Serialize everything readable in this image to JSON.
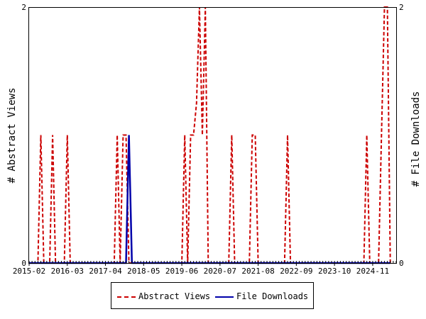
{
  "chart_data": {
    "type": "line",
    "xlabel": "",
    "ylabel_left": "# Abstract Views",
    "ylabel_right": "# File Downloads",
    "ylim_left": [
      0,
      2
    ],
    "ylim_right": [
      0,
      2
    ],
    "y_ticks_left": [
      "0",
      "2"
    ],
    "y_ticks_right": [
      "0",
      "2"
    ],
    "x_range": [
      "2015-02",
      "2025-07"
    ],
    "x_tick_labels": [
      "2015-02",
      "2016-03",
      "2017-04",
      "2018-05",
      "2019-06",
      "2020-07",
      "2021-08",
      "2022-09",
      "2023-10",
      "2024-11"
    ],
    "grid": false,
    "legend_placement": "bottom",
    "series": [
      {
        "name": "Abstract Views",
        "color": "#cc0000",
        "style": "dashed",
        "points": [
          [
            "2015-02",
            0
          ],
          [
            "2015-05",
            0
          ],
          [
            "2015-06",
            1
          ],
          [
            "2015-07",
            0
          ],
          [
            "2015-09",
            0
          ],
          [
            "2015-10",
            1
          ],
          [
            "2015-11",
            0
          ],
          [
            "2016-02",
            0
          ],
          [
            "2016-03",
            1
          ],
          [
            "2016-04",
            0
          ],
          [
            "2017-07",
            0
          ],
          [
            "2017-08",
            1
          ],
          [
            "2017-09",
            0
          ],
          [
            "2017-10",
            1
          ],
          [
            "2017-11",
            1
          ],
          [
            "2017-12",
            0
          ],
          [
            "2019-06",
            0
          ],
          [
            "2019-07",
            1
          ],
          [
            "2019-08",
            0
          ],
          [
            "2019-09",
            1
          ],
          [
            "2019-10",
            1
          ],
          [
            "2019-11",
            1.25
          ],
          [
            "2019-12",
            2
          ],
          [
            "2020-01",
            1
          ],
          [
            "2020-02",
            2
          ],
          [
            "2020-03",
            0
          ],
          [
            "2020-10",
            0
          ],
          [
            "2020-11",
            1
          ],
          [
            "2020-12",
            0
          ],
          [
            "2021-05",
            0
          ],
          [
            "2021-06",
            1
          ],
          [
            "2021-07",
            1
          ],
          [
            "2021-08",
            0
          ],
          [
            "2022-05",
            0
          ],
          [
            "2022-06",
            1
          ],
          [
            "2022-07",
            0
          ],
          [
            "2024-08",
            0
          ],
          [
            "2024-09",
            1
          ],
          [
            "2024-10",
            0
          ],
          [
            "2025-01",
            0
          ],
          [
            "2025-02",
            1
          ],
          [
            "2025-03",
            2
          ],
          [
            "2025-04",
            2
          ],
          [
            "2025-05",
            0
          ]
        ]
      },
      {
        "name": "File Downloads",
        "color": "#0000aa",
        "style": "solid",
        "points": [
          [
            "2015-02",
            0
          ],
          [
            "2017-11",
            0
          ],
          [
            "2017-12",
            1
          ],
          [
            "2018-01",
            0
          ],
          [
            "2025-05",
            0
          ]
        ]
      }
    ]
  },
  "legend": {
    "items": [
      {
        "label": "Abstract Views",
        "color": "#cc0000",
        "style": "dashed"
      },
      {
        "label": "File Downloads",
        "color": "#0000aa",
        "style": "solid"
      }
    ]
  }
}
